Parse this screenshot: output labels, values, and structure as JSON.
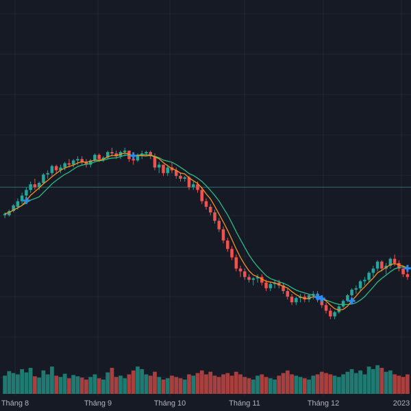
{
  "colors": {
    "background": "#161a25",
    "grid": "#232735",
    "up": "#26a69a",
    "down": "#ef5350",
    "up_volume": "#1f7a72",
    "down_volume": "#a8403f",
    "ma_fast": "#f7931a",
    "ma_slow": "#2ebd85",
    "marker": "#2a8cf0",
    "price_line": "#2f6f73",
    "axis_text": "#b2b5be"
  },
  "chart_data": {
    "type": "candlestick",
    "title": "",
    "xlabel": "",
    "ylabel": "",
    "grid": true,
    "x_tick_labels": [
      "Tháng 8",
      "Tháng 9",
      "Tháng 10",
      "Tháng 11",
      "Tháng 12",
      "2023"
    ],
    "price_ylim": [
      0,
      100
    ],
    "volume_ylim": [
      0,
      100
    ],
    "price_line_level": 48,
    "candles": [
      [
        38,
        39,
        37,
        38.5,
        28
      ],
      [
        38,
        40,
        37.5,
        39.5,
        35
      ],
      [
        39.5,
        42,
        39,
        41.5,
        32
      ],
      [
        41,
        44,
        40,
        43,
        30
      ],
      [
        43,
        46,
        42,
        45,
        38
      ],
      [
        45,
        48,
        44,
        47,
        33
      ],
      [
        47,
        50,
        46,
        49,
        40
      ],
      [
        49,
        51,
        47,
        48,
        27
      ],
      [
        48,
        50,
        47,
        49.5,
        25
      ],
      [
        49.5,
        53,
        49,
        52.5,
        36
      ],
      [
        52.5,
        54,
        51,
        53,
        30
      ],
      [
        53,
        56,
        52,
        55.5,
        42
      ],
      [
        55.5,
        56,
        53,
        54,
        28
      ],
      [
        54,
        56,
        53,
        55,
        26
      ],
      [
        55,
        57,
        54,
        56.5,
        31
      ],
      [
        56.5,
        58,
        55,
        56,
        24
      ],
      [
        56,
        58,
        55,
        57.5,
        29
      ],
      [
        57.5,
        59,
        56,
        58,
        27
      ],
      [
        58,
        59,
        56,
        57,
        25
      ],
      [
        57,
        58,
        55,
        56,
        22
      ],
      [
        56,
        58,
        55,
        57.5,
        26
      ],
      [
        57.5,
        60,
        57,
        59.5,
        30
      ],
      [
        59.5,
        60,
        57,
        58,
        24
      ],
      [
        58,
        59,
        57,
        58.5,
        22
      ],
      [
        58.5,
        61,
        58,
        60.5,
        33
      ],
      [
        60.5,
        62,
        59,
        60,
        40
      ],
      [
        60,
        61,
        58,
        59,
        26
      ],
      [
        59,
        61,
        58,
        60.5,
        28
      ],
      [
        60.5,
        62,
        59,
        61,
        24
      ],
      [
        61,
        61,
        57,
        58,
        30
      ],
      [
        58,
        59,
        56,
        57.5,
        36
      ],
      [
        57.5,
        60,
        57,
        59.5,
        42
      ],
      [
        59.5,
        61,
        58,
        60,
        38
      ],
      [
        60,
        61,
        59,
        60.5,
        30
      ],
      [
        60.5,
        61,
        58,
        59,
        28
      ],
      [
        59,
        60,
        54,
        55,
        34
      ],
      [
        55,
        57,
        53,
        56,
        26
      ],
      [
        56,
        56,
        52,
        53,
        22
      ],
      [
        53,
        56,
        52,
        55,
        24
      ],
      [
        55,
        57,
        53,
        54,
        28
      ],
      [
        54,
        55,
        51,
        52,
        26
      ],
      [
        52,
        53,
        50,
        51,
        24
      ],
      [
        51,
        52,
        50,
        51.5,
        22
      ],
      [
        51.5,
        52,
        47,
        48,
        30
      ],
      [
        48,
        50,
        47,
        49,
        28
      ],
      [
        49,
        50,
        46,
        47,
        32
      ],
      [
        47,
        48,
        42,
        43,
        36
      ],
      [
        43,
        44,
        40,
        41,
        30
      ],
      [
        41,
        42,
        38,
        39,
        34
      ],
      [
        39,
        40,
        35,
        36,
        28
      ],
      [
        36,
        37,
        32,
        33,
        26
      ],
      [
        33,
        34,
        28,
        29,
        30
      ],
      [
        29,
        30,
        25,
        26,
        32
      ],
      [
        26,
        27,
        22,
        23,
        28
      ],
      [
        23,
        24,
        18,
        19,
        34
      ],
      [
        19,
        20,
        16,
        18,
        30
      ],
      [
        18,
        19,
        15,
        16,
        26
      ],
      [
        16,
        17,
        14,
        15,
        24
      ],
      [
        15,
        16,
        13,
        15.5,
        22
      ],
      [
        15.5,
        17,
        14,
        16,
        28
      ],
      [
        16,
        17,
        13,
        14,
        30
      ],
      [
        14,
        15,
        11,
        12,
        26
      ],
      [
        12,
        14,
        11,
        13.5,
        24
      ],
      [
        13.5,
        15,
        12,
        14,
        22
      ],
      [
        14,
        15,
        12,
        13,
        28
      ],
      [
        13,
        14,
        10,
        11,
        32
      ],
      [
        11,
        12,
        8,
        9,
        36
      ],
      [
        9,
        10,
        6,
        7,
        30
      ],
      [
        7,
        9,
        6,
        8.5,
        28
      ],
      [
        8.5,
        10,
        7,
        9,
        26
      ],
      [
        9,
        10,
        7,
        8,
        24
      ],
      [
        8,
        10,
        7,
        9.5,
        22
      ],
      [
        9.5,
        11,
        8,
        10,
        28
      ],
      [
        10,
        11,
        7,
        8,
        30
      ],
      [
        8,
        9,
        5,
        6,
        34
      ],
      [
        6,
        7,
        3,
        4,
        32
      ],
      [
        4,
        5,
        1,
        2,
        30
      ],
      [
        2,
        4,
        1,
        3.5,
        28
      ],
      [
        3.5,
        6,
        3,
        5.5,
        26
      ],
      [
        5.5,
        8,
        5,
        7.5,
        30
      ],
      [
        7.5,
        10,
        7,
        9.5,
        34
      ],
      [
        9.5,
        12,
        9,
        11.5,
        38
      ],
      [
        11.5,
        13,
        10,
        12,
        32
      ],
      [
        12,
        15,
        11,
        14.5,
        36
      ],
      [
        14.5,
        16,
        13,
        15,
        30
      ],
      [
        15,
        18,
        14,
        17.5,
        42
      ],
      [
        17.5,
        20,
        16,
        19,
        38
      ],
      [
        19,
        22,
        18,
        21.5,
        44
      ],
      [
        21.5,
        22,
        18,
        19,
        40
      ],
      [
        19,
        21,
        17,
        20,
        34
      ],
      [
        20,
        23,
        19,
        22.5,
        36
      ],
      [
        22.5,
        24,
        20,
        21,
        30
      ],
      [
        21,
        22,
        18,
        19,
        28
      ],
      [
        19,
        20,
        16,
        17,
        26
      ],
      [
        17,
        18,
        15,
        16,
        30
      ]
    ]
  }
}
